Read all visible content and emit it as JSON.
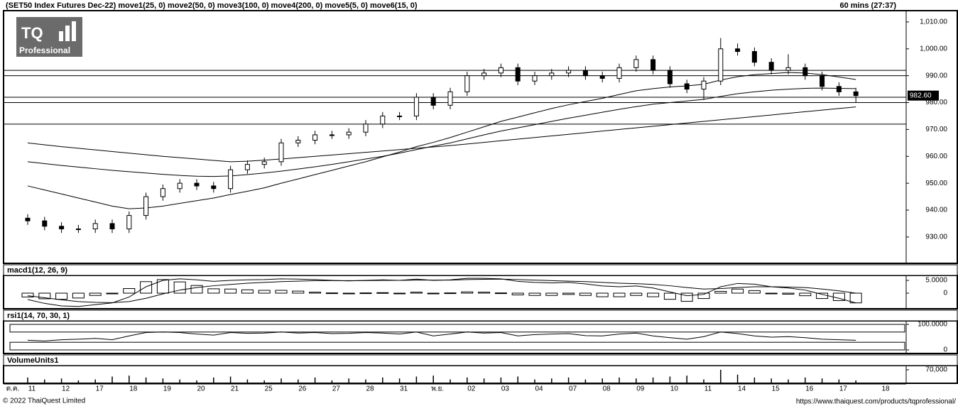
{
  "header": {
    "title": "(SET50 Index Futures Dec-22) move1(25, 0) move2(50, 0) move3(100, 0) move4(200, 0) move5(5, 0) move6(15, 0)",
    "timeframe": "60 mins (27:37)"
  },
  "logo": {
    "mark": "TQ",
    "caption": "Professional"
  },
  "footer": {
    "copyright": "© 2022 ThaiQuest Limited",
    "url": "https://www.thaiquest.com/products/tqprofessional/"
  },
  "chart_data": [
    {
      "type": "candlestick",
      "open": [
        937,
        936,
        934,
        933,
        933,
        935,
        933,
        938,
        945,
        948,
        950,
        949,
        948,
        955,
        957,
        958,
        965,
        966,
        968,
        968,
        969,
        972,
        975,
        975,
        982,
        979,
        984,
        990,
        991,
        993,
        988,
        990,
        991,
        992,
        990,
        989,
        993,
        996,
        992,
        987,
        985,
        988,
        1000,
        999,
        995,
        992,
        993,
        990,
        986,
        984
      ],
      "high": [
        938.5,
        937.5,
        935.5,
        934.5,
        936.5,
        936.5,
        939.5,
        946.5,
        949.5,
        951.5,
        951.5,
        950.5,
        956.5,
        958.5,
        959.5,
        966.5,
        967.5,
        969.5,
        969.5,
        970.5,
        973.5,
        976.5,
        976.5,
        983.5,
        983.5,
        985.5,
        991.5,
        992.5,
        994.5,
        994.5,
        991.5,
        992.5,
        993.5,
        993.5,
        991.5,
        994.5,
        997.5,
        997.5,
        993.5,
        988.5,
        989.5,
        1004,
        1002,
        1000.5,
        996.5,
        998,
        994.5,
        991.5,
        987.5,
        985.5
      ],
      "low": [
        934.5,
        932.5,
        931.5,
        931.5,
        931.5,
        931.5,
        931.5,
        936.5,
        943.5,
        946.5,
        947.5,
        946.5,
        946.5,
        953.5,
        955.5,
        956.5,
        963.5,
        964.5,
        966.5,
        966.5,
        967.5,
        970.5,
        973.5,
        973.5,
        977.5,
        977.5,
        982.5,
        988.5,
        989.5,
        986.5,
        986.5,
        988.5,
        989.5,
        988.5,
        987.5,
        987.5,
        991.5,
        990.5,
        985.5,
        983.5,
        981,
        986.5,
        997.5,
        993.5,
        990.5,
        990.5,
        988.5,
        984.5,
        982.5,
        980
      ],
      "close": [
        936,
        934,
        933,
        933,
        935,
        933,
        938,
        945,
        948,
        950,
        949,
        948,
        955,
        957,
        958,
        965,
        966,
        968,
        968,
        969,
        972,
        975,
        975,
        982,
        979,
        984,
        990,
        991,
        993,
        988,
        990,
        991,
        992,
        990,
        989,
        993,
        996,
        992,
        987,
        985,
        988,
        1000,
        999,
        995,
        992,
        993,
        990,
        986,
        984,
        982.6
      ],
      "series": [
        {
          "color": "#000000",
          "values": [
            949,
            947.5,
            946,
            944.5,
            943,
            941.5,
            940.5,
            940.8,
            941.5,
            942.5,
            943.5,
            944.5,
            945.8,
            947,
            948.3,
            950,
            951.6,
            953.2,
            954.8,
            956.4,
            958,
            959.8,
            961.6,
            963.6,
            965.2,
            967,
            969,
            971,
            973,
            974.6,
            976.2,
            977.8,
            979.2,
            980.4,
            981.6,
            983,
            984.4,
            985.2,
            985.8,
            986.2,
            986.8,
            988.4,
            989.6,
            990.4,
            990.8,
            991.2,
            991,
            990.4,
            989.5,
            988.6
          ]
        },
        {
          "color": "#000000",
          "values": [
            958,
            957.3,
            956.6,
            956,
            955.4,
            954.8,
            954.3,
            953.8,
            953.3,
            952.9,
            952.6,
            952.5,
            952.7,
            953.2,
            953.8,
            954.5,
            955.3,
            956.1,
            957,
            958,
            959,
            960,
            961.2,
            962.5,
            963.8,
            965,
            966.5,
            968,
            969.4,
            970.6,
            971.8,
            973,
            974.2,
            975.3,
            976.4,
            977.5,
            978.5,
            979.4,
            980,
            980.6,
            981.2,
            982.3,
            983.3,
            984,
            984.6,
            985,
            985.3,
            985.4,
            985.3,
            985.2
          ]
        },
        {
          "color": "#000000",
          "values": [
            965,
            964.3,
            963.6,
            963,
            962.4,
            961.8,
            961.2,
            960.6,
            960,
            959.5,
            959,
            958.5,
            958,
            958.2,
            958.6,
            959,
            959.5,
            960,
            960.5,
            961,
            961.5,
            962,
            962.5,
            963,
            963.5,
            964,
            964.6,
            965.2,
            965.8,
            966.4,
            967,
            967.6,
            968.2,
            968.8,
            969.4,
            970,
            970.6,
            971.2,
            971.8,
            972.4,
            973,
            973.6,
            974.2,
            974.8,
            975.4,
            976,
            976.6,
            977.2,
            977.8,
            978.4
          ]
        }
      ],
      "levels": [
        992,
        990,
        982,
        980,
        972
      ],
      "last_price": {
        "value": 982.6,
        "label": "982.60"
      },
      "ylim": [
        920.2,
        1014.2
      ],
      "yticks": [
        {
          "value": 930,
          "label": "930.00"
        },
        {
          "value": 940,
          "label": "940.00"
        },
        {
          "value": 950,
          "label": "950.00"
        },
        {
          "value": 960,
          "label": "960.00"
        },
        {
          "value": 970,
          "label": "970.00"
        },
        {
          "value": 980,
          "label": "980.00"
        },
        {
          "value": 990,
          "label": "990.00"
        },
        {
          "value": 1000,
          "label": "1,000.00"
        },
        {
          "value": 1010,
          "label": "1,010.00"
        }
      ]
    },
    {
      "type": "macd",
      "title": "macd1(12, 26, 9)",
      "series": [
        {
          "color": "#000000",
          "values": [
            -2.5,
            -4,
            -5,
            -5.2,
            -4.5,
            -3.8,
            -1.5,
            2.5,
            5,
            5.6,
            5.2,
            4.6,
            5,
            5.2,
            5.3,
            5.6,
            5.5,
            5.3,
            5,
            4.8,
            5,
            5.2,
            5,
            5.5,
            5,
            5.2,
            5.8,
            5.8,
            5.6,
            4.6,
            4.2,
            4,
            4.2,
            3.6,
            2.8,
            2.5,
            2.8,
            2,
            0.5,
            -1,
            -0.5,
            2.5,
            3.8,
            3.5,
            2.5,
            2,
            1.2,
            -0.5,
            -2,
            -3.8
          ]
        },
        {
          "color": "#000000",
          "values": [
            -1,
            -1.8,
            -2.6,
            -3.3,
            -3.6,
            -3.7,
            -3.3,
            -2,
            -0.3,
            1.2,
            2.2,
            2.9,
            3.4,
            3.9,
            4.2,
            4.5,
            4.7,
            4.9,
            4.9,
            4.9,
            4.9,
            5,
            5,
            5.1,
            5.1,
            5.1,
            5.3,
            5.4,
            5.5,
            5.3,
            5.1,
            4.9,
            4.7,
            4.5,
            4.2,
            3.9,
            3.7,
            3.4,
            2.9,
            2.2,
            1.6,
            1.8,
            2.2,
            2.5,
            2.5,
            2.4,
            2.2,
            1.6,
            0.9,
            0
          ]
        }
      ],
      "histogram": [
        -1.5,
        -2.2,
        -2.4,
        -1.9,
        -0.9,
        -0.1,
        1.8,
        4.5,
        5.3,
        4.4,
        3,
        1.7,
        1.6,
        1.3,
        1.1,
        1.1,
        0.8,
        0.4,
        0.1,
        -0.1,
        0.1,
        0.2,
        0,
        0.4,
        -0.1,
        0.1,
        0.5,
        0.4,
        0.1,
        -0.7,
        -0.9,
        -0.9,
        -0.5,
        -0.9,
        -1.4,
        -1.4,
        -0.9,
        -1.4,
        -2.4,
        -3.2,
        -2.1,
        0.7,
        1.6,
        1,
        0,
        -0.4,
        -1,
        -2.1,
        -2.9,
        -3.8
      ],
      "ylim": [
        -6.1,
        6.94
      ],
      "yticks": [
        0,
        {
          "value": 5,
          "label": "5.0000"
        }
      ]
    },
    {
      "type": "line",
      "title": "rsi1(14, 70, 30, 1)",
      "values": [
        38,
        35,
        40,
        42,
        45,
        40,
        55,
        68,
        70,
        68,
        62,
        58,
        68,
        65,
        66,
        70,
        66,
        68,
        64,
        65,
        68,
        66,
        62,
        70,
        55,
        62,
        70,
        66,
        68,
        55,
        60,
        62,
        64,
        56,
        55,
        62,
        66,
        55,
        48,
        42,
        52,
        70,
        64,
        55,
        50,
        52,
        48,
        42,
        40,
        38
      ],
      "levels": [
        70,
        30
      ],
      "ylim": [
        -13.9,
        113.9
      ],
      "yticks": [
        0,
        {
          "value": 100,
          "label": "100.0000"
        }
      ]
    },
    {
      "type": "bar",
      "title": "VolumeUnits1",
      "values": [
        30000,
        20000,
        25000,
        15000,
        20000,
        35000,
        40000,
        30000,
        25000,
        20000,
        15000,
        30000,
        35000,
        20000,
        15000,
        25000,
        20000,
        30000,
        15000,
        25000,
        20000,
        30000,
        25000,
        35000,
        40000,
        20000,
        30000,
        25000,
        30000,
        35000,
        20000,
        25000,
        30000,
        20000,
        25000,
        30000,
        25000,
        30000,
        35000,
        40000,
        20000,
        70000,
        45000,
        30000,
        25000,
        20000,
        30000,
        25000,
        20000,
        15000
      ],
      "categories": [
        "11",
        null,
        "12",
        null,
        "17",
        null,
        "18",
        null,
        "19",
        null,
        "20",
        null,
        "21",
        null,
        "25",
        null,
        "26",
        null,
        "27",
        null,
        "28",
        null,
        "31",
        null,
        "พ.ย.",
        null,
        "02",
        null,
        "03",
        null,
        "04",
        null,
        "07",
        null,
        "08",
        null,
        "09",
        null,
        "10",
        null,
        "11",
        null,
        "14",
        null,
        "15",
        null,
        "16",
        null,
        "17",
        null
      ],
      "x_prefix": "ต.ค.",
      "x_suffix": "18",
      "ylim": [
        0,
        92000
      ],
      "yticks": [
        {
          "value": 70000,
          "label": "70,000"
        }
      ]
    }
  ]
}
